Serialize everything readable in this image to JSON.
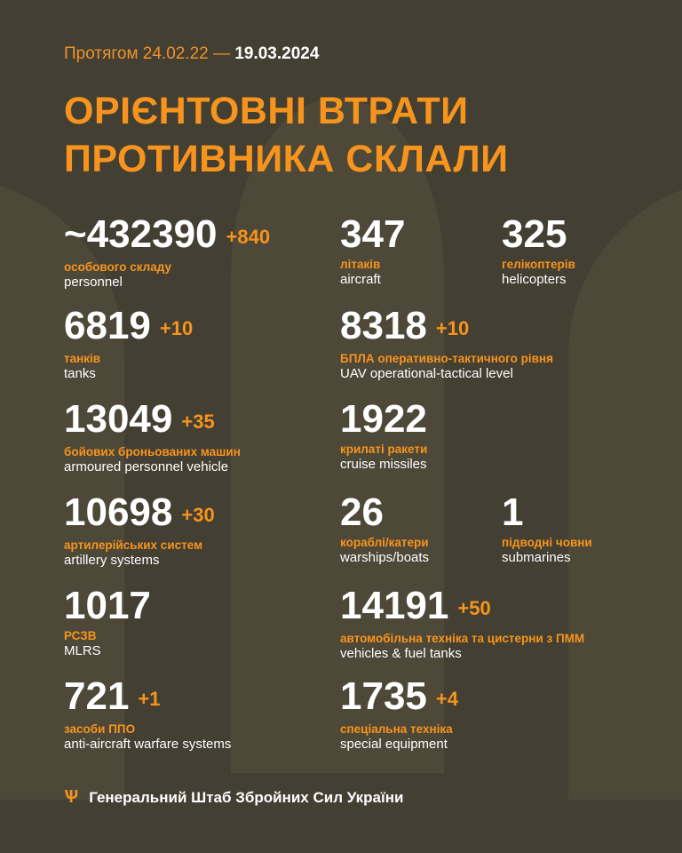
{
  "header": {
    "period_prefix": "Протягом 24.02.22 —",
    "period_end": "19.03.2024",
    "title_line1": "ОРІЄНТОВНІ ВТРАТИ",
    "title_line2": "ПРОТИВНИКА СКЛАЛИ"
  },
  "colors": {
    "background": "#433f33",
    "accent": "#f7941d",
    "text": "#ffffff"
  },
  "items": [
    {
      "value": "~432390",
      "delta": "+840",
      "ua": "особового складу",
      "en": "personnel"
    },
    {
      "value": "347",
      "delta": "",
      "ua": "літаків",
      "en": "aircraft"
    },
    {
      "value": "325",
      "delta": "",
      "ua": "гелікоптерів",
      "en": "helicopters"
    },
    {
      "value": "6819",
      "delta": "+10",
      "ua": "танків",
      "en": "tanks"
    },
    {
      "value": "8318",
      "delta": "+10",
      "ua": "БПЛА оперативно-тактичного рівня",
      "en": "UAV operational-tactical level"
    },
    {
      "value": "13049",
      "delta": "+35",
      "ua": "бойових броньованих машин",
      "en": "armoured personnel vehicle"
    },
    {
      "value": "1922",
      "delta": "",
      "ua": "крилаті ракети",
      "en": "cruise missiles"
    },
    {
      "value": "10698",
      "delta": "+30",
      "ua": "артилерійських систем",
      "en": "artillery systems"
    },
    {
      "value": "26",
      "delta": "",
      "ua": "кораблі/катери",
      "en": "warships/boats"
    },
    {
      "value": "1",
      "delta": "",
      "ua": "підводні човни",
      "en": "submarines"
    },
    {
      "value": "1017",
      "delta": "",
      "ua": "РСЗВ",
      "en": "MLRS"
    },
    {
      "value": "14191",
      "delta": "+50",
      "ua": "автомобільна техніка та цистерни з ПММ",
      "en": "vehicles & fuel tanks"
    },
    {
      "value": "721",
      "delta": "+1",
      "ua": "засоби ППО",
      "en": "anti-aircraft warfare systems"
    },
    {
      "value": "1735",
      "delta": "+4",
      "ua": "спеціальна техніка",
      "en": "special equipment"
    }
  ],
  "footer": {
    "icon": "tryzub-icon",
    "text": "Генеральний Штаб Збройних Сил України"
  }
}
